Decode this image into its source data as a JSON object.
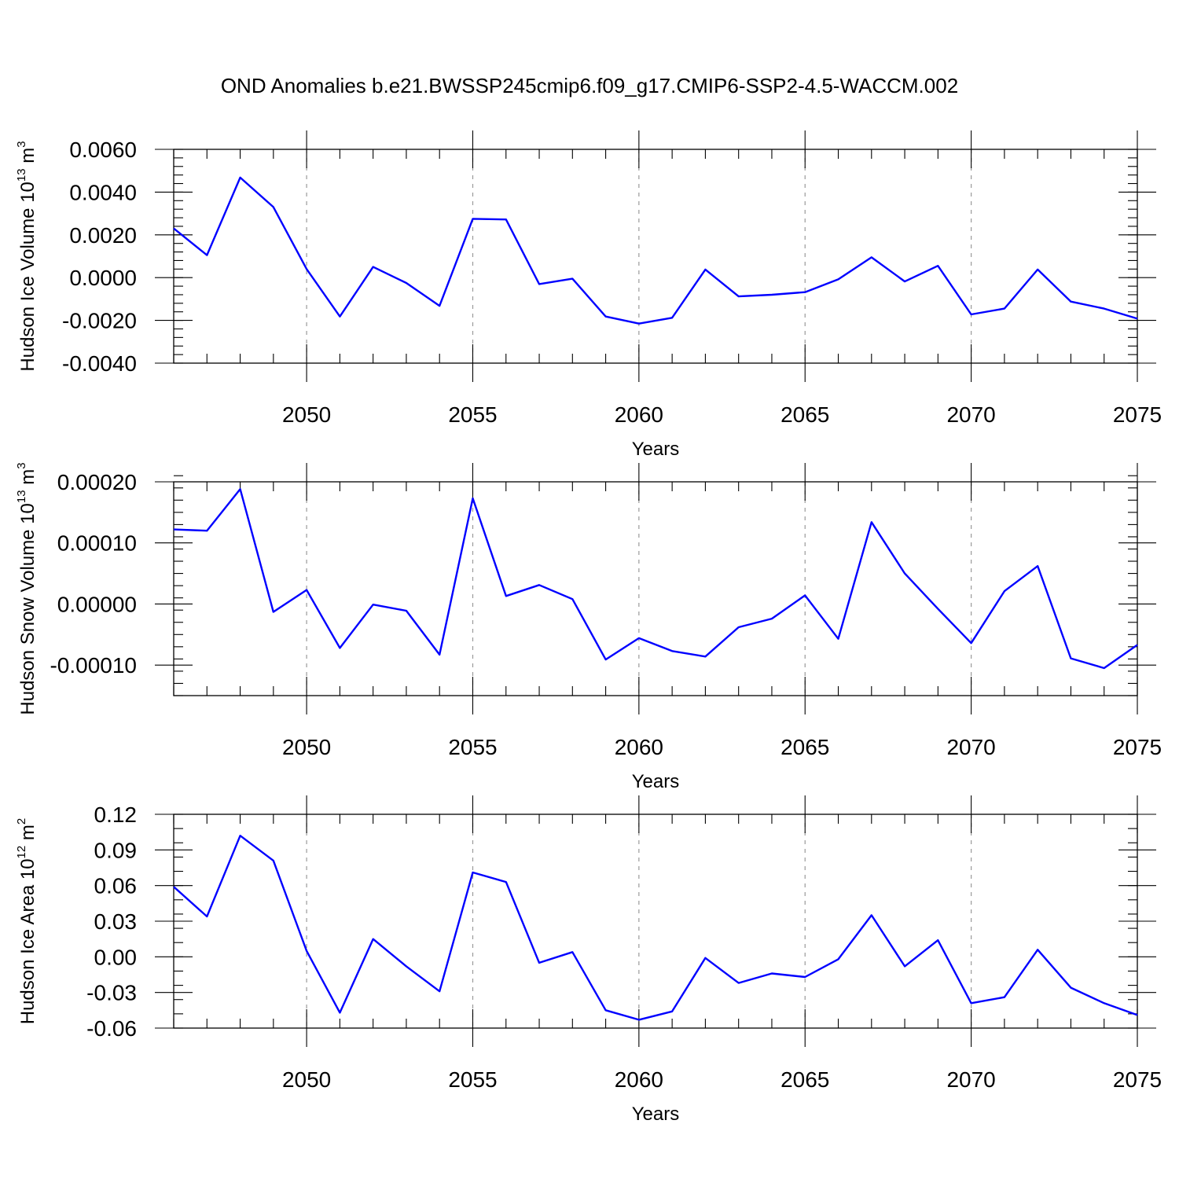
{
  "title": "OND Anomalies b.e21.BWSSP245cmip6.f09_g17.CMIP6-SSP2-4.5-WACCM.002",
  "colors": {
    "series": "#0000ff",
    "grid": "#9a9a9a"
  },
  "chart_data": [
    {
      "type": "line",
      "xlabel": "Years",
      "ylabel": {
        "text": "Hudson Ice Volume 10",
        "exp": "13",
        "unit": " m",
        "unit_exp": "3"
      },
      "xlim": [
        2046,
        2075
      ],
      "ylim": [
        -0.004,
        0.006
      ],
      "x_ticks": [
        2050,
        2055,
        2060,
        2065,
        2070,
        2075
      ],
      "x_tick_labels": [
        "2050",
        "2055",
        "2060",
        "2065",
        "2070",
        "2075"
      ],
      "y_ticks": [
        -0.004,
        -0.002,
        0.0,
        0.002,
        0.004,
        0.006
      ],
      "y_tick_labels": [
        "-0.0040",
        "-0.0020",
        "0.0000",
        "0.0020",
        "0.0040",
        "0.0060"
      ],
      "grid_x": true,
      "x": [
        2046,
        2047,
        2048,
        2049,
        2050,
        2051,
        2052,
        2053,
        2054,
        2055,
        2056,
        2057,
        2058,
        2059,
        2060,
        2061,
        2062,
        2063,
        2064,
        2065,
        2066,
        2067,
        2068,
        2069,
        2070,
        2071,
        2072,
        2073,
        2074,
        2075
      ],
      "values": [
        0.0023,
        0.00105,
        0.00468,
        0.0033,
        0.0004,
        -0.00182,
        0.0005,
        -0.00025,
        -0.00132,
        0.00275,
        0.00272,
        -0.0003,
        -5e-05,
        -0.00182,
        -0.00215,
        -0.00188,
        0.00038,
        -0.00088,
        -0.0008,
        -0.00068,
        -8e-05,
        0.00095,
        -0.00018,
        0.00055,
        -0.00172,
        -0.00145,
        0.00038,
        -0.00112,
        -0.00145,
        -0.00192
      ]
    },
    {
      "type": "line",
      "xlabel": "Years",
      "ylabel": {
        "text": "Hudson Snow Volume 10",
        "exp": "13",
        "unit": " m",
        "unit_exp": "3"
      },
      "xlim": [
        2046,
        2075
      ],
      "ylim": [
        -0.00015,
        0.0002
      ],
      "x_ticks": [
        2050,
        2055,
        2060,
        2065,
        2070,
        2075
      ],
      "x_tick_labels": [
        "2050",
        "2055",
        "2060",
        "2065",
        "2070",
        "2075"
      ],
      "y_ticks": [
        -0.0001,
        0.0,
        0.0001,
        0.0002
      ],
      "y_tick_labels": [
        "-0.00010",
        "0.00000",
        "0.00010",
        "0.00020"
      ],
      "grid_x": true,
      "x": [
        2046,
        2047,
        2048,
        2049,
        2050,
        2051,
        2052,
        2053,
        2054,
        2055,
        2056,
        2057,
        2058,
        2059,
        2060,
        2061,
        2062,
        2063,
        2064,
        2065,
        2066,
        2067,
        2068,
        2069,
        2070,
        2071,
        2072,
        2073,
        2074,
        2075
      ],
      "values": [
        0.000122,
        0.00012,
        0.000188,
        -1.3e-05,
        2.3e-05,
        -7.2e-05,
        -1e-06,
        -1.1e-05,
        -8.3e-05,
        0.000173,
        1.3e-05,
        3.1e-05,
        8e-06,
        -9.1e-05,
        -5.6e-05,
        -7.7e-05,
        -8.6e-05,
        -3.8e-05,
        -2.4e-05,
        1.4e-05,
        -5.7e-05,
        0.000134,
        5e-05,
        -8e-06,
        -6.4e-05,
        2.1e-05,
        6.2e-05,
        -8.9e-05,
        -0.000105,
        -6.7e-05
      ]
    },
    {
      "type": "line",
      "xlabel": "Years",
      "ylabel": {
        "text": "Hudson Ice Area 10",
        "exp": "12",
        "unit": " m",
        "unit_exp": "2"
      },
      "xlim": [
        2046,
        2075
      ],
      "ylim": [
        -0.06,
        0.12
      ],
      "x_ticks": [
        2050,
        2055,
        2060,
        2065,
        2070,
        2075
      ],
      "x_tick_labels": [
        "2050",
        "2055",
        "2060",
        "2065",
        "2070",
        "2075"
      ],
      "y_ticks": [
        -0.06,
        -0.03,
        0.0,
        0.03,
        0.06,
        0.09,
        0.12
      ],
      "y_tick_labels": [
        "-0.06",
        "-0.03",
        "0.00",
        "0.03",
        "0.06",
        "0.09",
        "0.12"
      ],
      "grid_x": true,
      "x": [
        2046,
        2047,
        2048,
        2049,
        2050,
        2051,
        2052,
        2053,
        2054,
        2055,
        2056,
        2057,
        2058,
        2059,
        2060,
        2061,
        2062,
        2063,
        2064,
        2065,
        2066,
        2067,
        2068,
        2069,
        2070,
        2071,
        2072,
        2073,
        2074,
        2075
      ],
      "values": [
        0.059,
        0.034,
        0.102,
        0.081,
        0.005,
        -0.047,
        0.015,
        -0.008,
        -0.029,
        0.071,
        0.063,
        -0.005,
        0.004,
        -0.045,
        -0.053,
        -0.046,
        -0.001,
        -0.022,
        -0.014,
        -0.017,
        -0.002,
        0.035,
        -0.008,
        0.014,
        -0.039,
        -0.034,
        0.006,
        -0.026,
        -0.039,
        -0.049
      ]
    }
  ]
}
